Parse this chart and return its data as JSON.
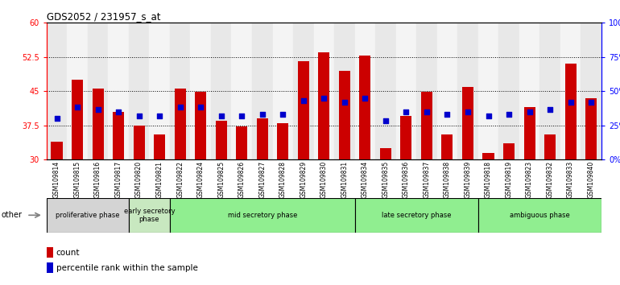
{
  "title": "GDS2052 / 231957_s_at",
  "samples": [
    "GSM109814",
    "GSM109815",
    "GSM109816",
    "GSM109817",
    "GSM109820",
    "GSM109821",
    "GSM109822",
    "GSM109824",
    "GSM109825",
    "GSM109826",
    "GSM109827",
    "GSM109828",
    "GSM109829",
    "GSM109830",
    "GSM109831",
    "GSM109834",
    "GSM109835",
    "GSM109836",
    "GSM109837",
    "GSM109838",
    "GSM109839",
    "GSM109818",
    "GSM109819",
    "GSM109823",
    "GSM109832",
    "GSM109833",
    "GSM109840"
  ],
  "count_values": [
    34.0,
    47.5,
    45.5,
    40.5,
    37.5,
    35.5,
    45.5,
    44.8,
    38.5,
    37.2,
    39.0,
    38.0,
    51.5,
    53.5,
    49.5,
    52.8,
    32.5,
    39.5,
    44.8,
    35.5,
    46.0,
    31.5,
    33.5,
    41.5,
    35.5,
    51.0,
    43.5
  ],
  "percentile_values": [
    39.0,
    41.5,
    41.0,
    40.5,
    39.5,
    39.5,
    41.5,
    41.5,
    39.5,
    39.5,
    40.0,
    40.0,
    43.0,
    43.5,
    42.5,
    43.5,
    38.5,
    40.5,
    40.5,
    40.0,
    40.5,
    39.5,
    40.0,
    40.5,
    41.0,
    42.5,
    42.5
  ],
  "bar_bottom": 30.0,
  "ylim_left": [
    30,
    60
  ],
  "ylim_right": [
    0,
    100
  ],
  "yticks_left": [
    30,
    37.5,
    45,
    52.5,
    60
  ],
  "yticks_right": [
    0,
    25,
    50,
    75,
    100
  ],
  "bar_color": "#cc0000",
  "percentile_color": "#0000cc",
  "phase_borders": [
    0,
    4,
    6,
    15,
    21,
    27
  ],
  "phase_labels": [
    "proliferative phase",
    "early secretory\nphase",
    "mid secretory phase",
    "late secretory phase",
    "ambiguous phase"
  ],
  "phase_bg_colors": [
    "#d4d4d4",
    "#c8e8c0",
    "#90ee90",
    "#90ee90",
    "#90ee90"
  ],
  "col_bg_even": "#e8e8e8",
  "col_bg_odd": "#f4f4f4",
  "other_label": "other"
}
